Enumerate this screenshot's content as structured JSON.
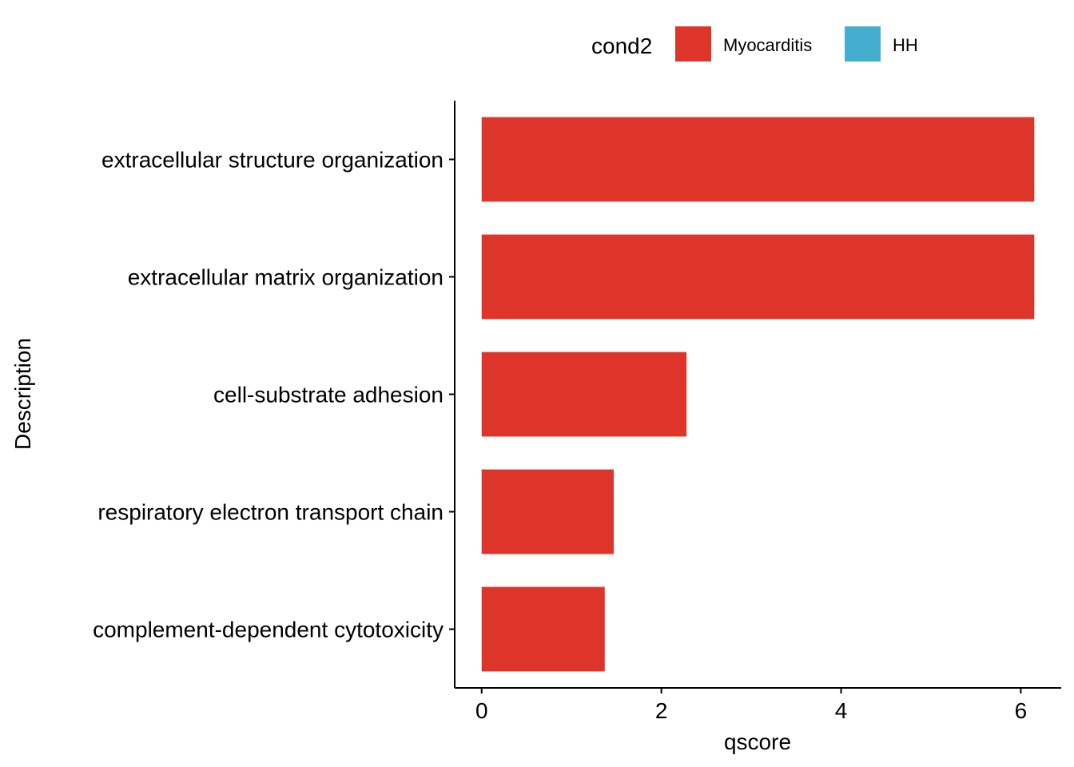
{
  "chart_data": {
    "type": "bar",
    "orientation": "horizontal",
    "title": "",
    "xlabel": "qscore",
    "ylabel": "Description",
    "xlim": [
      -0.3,
      6.45
    ],
    "xticks": [
      0,
      2,
      4,
      6
    ],
    "xtick_labels": [
      "0",
      "2",
      "4",
      "6"
    ],
    "categories": [
      "extracellular structure organization",
      "extracellular matrix organization",
      "cell-substrate adhesion",
      "respiratory electron transport chain",
      "complement-dependent cytotoxicity"
    ],
    "series": [
      {
        "name": "Myocarditis",
        "color": "#DE352B",
        "values": [
          6.15,
          6.15,
          2.28,
          1.47,
          1.37
        ]
      }
    ],
    "grid": false,
    "legend": {
      "title": "cond2",
      "position": "top",
      "entries": [
        {
          "label": "Myocarditis",
          "color": "#DE352B"
        },
        {
          "label": "HH",
          "color": "#44AECE"
        }
      ]
    }
  }
}
